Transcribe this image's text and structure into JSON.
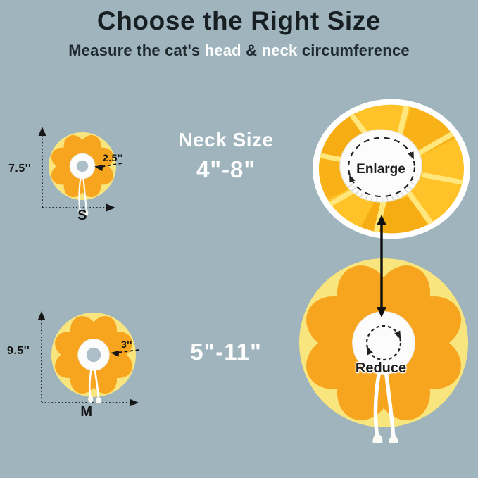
{
  "colors": {
    "background": "#9FB4BD",
    "title_text": "#181F23",
    "subtitle_text": "#1E2A30",
    "highlight_text": "#FFFFFF",
    "measure_text": "#141414",
    "neck_size_text": "#FFFFFF",
    "arrow_black": "#161616",
    "collar_base_yellow": "#F8E57E",
    "collar_petal_orange": "#F7A41E",
    "center_fabric_white": "#FCFCFC",
    "neck_hole_gray": "#ACBEC7",
    "string_white": "#FFFFFF",
    "photo_border_white": "#FFFFFF",
    "enlarge_ring_yellow": "#FFC329",
    "enlarge_divider_yellow": "#FFE77E",
    "enlarge_deep_orange": "#F5A90F",
    "dash_stroke": "#232323"
  },
  "header": {
    "title": "Choose the Right Size",
    "subtitle": {
      "prefix": "Measure the cat's ",
      "word_head": "head",
      "connector": " & ",
      "word_neck": "neck",
      "suffix": " circumference"
    }
  },
  "neck_size": {
    "heading": "Neck Size",
    "small_range": "4\"-8\"",
    "large_range": "5\"-11\""
  },
  "size_small": {
    "height": "7.5''",
    "hole": "2.5''",
    "letter": "S"
  },
  "size_medium": {
    "height": "9.5''",
    "hole": "3''",
    "letter": "M"
  },
  "photo_labels": {
    "top": "Enlarge",
    "bottom": "Reduce"
  }
}
